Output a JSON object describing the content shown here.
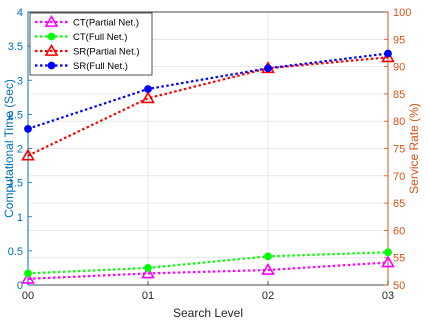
{
  "chart_data": {
    "type": "line",
    "title": "",
    "xlabel": "Search Level",
    "ylabel_left": "Computational Time (Sec)",
    "ylabel_right": "Service Rate (%)",
    "categories": [
      "00",
      "01",
      "02",
      "03"
    ],
    "ylim_left": [
      0,
      4
    ],
    "ylim_right": [
      50,
      100
    ],
    "yticks_left": [
      "0",
      "0.5",
      "1",
      "1.5",
      "2",
      "2.5",
      "3",
      "3.5",
      "4"
    ],
    "yticks_right": [
      "50",
      "55",
      "60",
      "65",
      "70",
      "75",
      "80",
      "85",
      "90",
      "95",
      "100"
    ],
    "grid": true,
    "legend_position": "top-left",
    "colors": {
      "left_axis": "#0072BD",
      "right_axis": "#D95319",
      "ct_partial": "#FF00FF",
      "ct_full": "#00FF00",
      "sr_partial": "#FF0000",
      "sr_full": "#0000FF"
    },
    "series": [
      {
        "name": "CT(Partial Net.)",
        "axis": "left",
        "marker": "triangle",
        "values": [
          0.09,
          0.17,
          0.22,
          0.33
        ]
      },
      {
        "name": "CT(Full Net.)",
        "axis": "left",
        "marker": "circle",
        "values": [
          0.17,
          0.25,
          0.42,
          0.48
        ]
      },
      {
        "name": "SR(Partial Net.)",
        "axis": "right",
        "marker": "triangle",
        "values": [
          73.7,
          84.2,
          89.7,
          91.7
        ]
      },
      {
        "name": "SR(Full Net.)",
        "axis": "right",
        "marker": "circle",
        "values": [
          78.6,
          85.9,
          89.7,
          92.4
        ]
      }
    ]
  }
}
